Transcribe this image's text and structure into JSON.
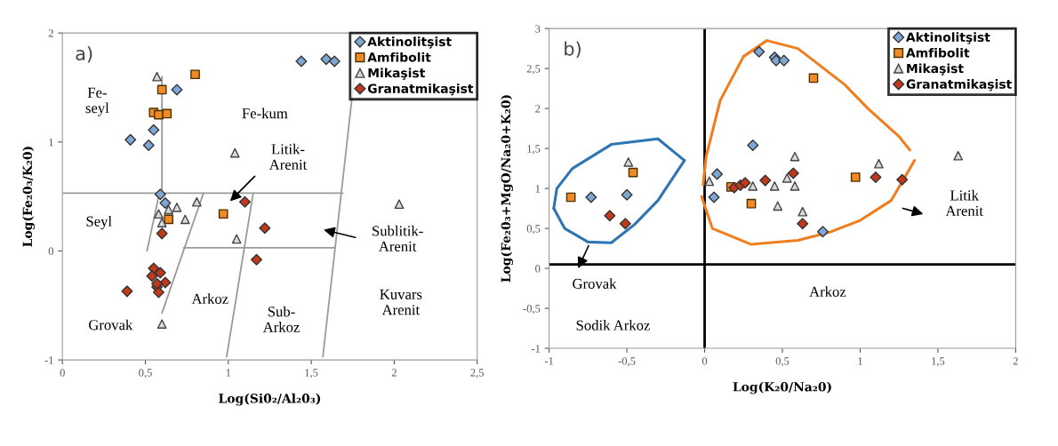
{
  "chart_data": [
    {
      "type": "scatter",
      "title": "a)",
      "xlabel": "Log(Si0₂/Al₂0₃)",
      "ylabel": "Log(Fe₂0₃/K₂0)",
      "xlim": [
        0,
        2.5
      ],
      "ylim": [
        -1,
        2
      ],
      "xticks": [
        0,
        {
          "value": 0.5,
          "label": "0,5"
        },
        1,
        {
          "value": 1.5,
          "label": "1,5"
        },
        2,
        {
          "value": 2.5,
          "label": "2,5"
        }
      ],
      "yticks": [
        -1,
        0,
        1,
        2
      ],
      "grid": false,
      "legend": "top right",
      "series": [
        {
          "name": "Aktinolitşist",
          "color": "#7fa7d6",
          "marker": "diamond",
          "x": [
            1.44,
            1.59,
            1.64,
            0.69,
            0.55,
            0.41,
            0.52,
            0.59,
            0.62
          ],
          "values": [
            1.74,
            1.76,
            1.74,
            1.48,
            1.11,
            1.02,
            0.97,
            0.52,
            0.44
          ]
        },
        {
          "name": "Amfibolit",
          "color": "#f08a24",
          "marker": "square",
          "x": [
            0.8,
            0.6,
            0.55,
            0.58,
            0.63,
            0.64,
            0.97
          ],
          "values": [
            1.62,
            1.48,
            1.27,
            1.25,
            1.26,
            0.29,
            0.34
          ]
        },
        {
          "name": "Mikaşist",
          "color": "#d9d9d9",
          "marker": "triangle",
          "x": [
            0.57,
            1.04,
            0.58,
            0.69,
            0.81,
            0.74,
            0.6,
            0.64,
            1.05,
            0.6,
            2.03
          ],
          "values": [
            1.6,
            0.9,
            0.34,
            0.4,
            0.45,
            0.29,
            0.26,
            0.38,
            0.11,
            -0.67,
            0.43
          ]
        },
        {
          "name": "Granatmikaşist",
          "color": "#c0391b",
          "marker": "diamond",
          "x": [
            1.1,
            1.22,
            0.6,
            1.17,
            0.39,
            0.55,
            0.54,
            0.59,
            0.62,
            0.57,
            0.58,
            0.57
          ],
          "values": [
            0.45,
            0.21,
            0.16,
            -0.08,
            -0.37,
            -0.16,
            -0.23,
            -0.2,
            -0.29,
            -0.33,
            -0.38,
            -0.3
          ]
        },
        {
          "type": "line",
          "color": "#9a9a9a",
          "x": [
            0,
            1.69
          ],
          "values": [
            0.53,
            0.53
          ]
        },
        {
          "type": "line",
          "color": "#9a9a9a",
          "x": [
            0.6,
            0.6
          ],
          "values": [
            0.53,
            1.6
          ]
        },
        {
          "type": "line",
          "color": "#9a9a9a",
          "x": [
            0.73,
            1.64
          ],
          "values": [
            0.03,
            0.03
          ]
        },
        {
          "type": "line",
          "color": "#9a9a9a",
          "x": [
            0.51,
            0.58
          ],
          "values": [
            0.0,
            0.5
          ]
        },
        {
          "type": "line",
          "color": "#9a9a9a",
          "x": [
            0.6,
            0.85
          ],
          "values": [
            -0.57,
            0.53
          ]
        },
        {
          "type": "line",
          "color": "#9a9a9a",
          "x": [
            0.99,
            1.15
          ],
          "values": [
            -0.97,
            0.53
          ]
        },
        {
          "type": "line",
          "color": "#9a9a9a",
          "x": [
            1.57,
            1.76
          ],
          "values": [
            -0.97,
            1.6
          ]
        }
      ],
      "annotations": [
        "Fe-\nseyl",
        "Fe-kum",
        "Litik-\nArenit",
        "Seyl",
        "Grovak",
        "Arkoz",
        "Sub-\nArkoz",
        "Sublitik-\nArenit",
        "Kuvars\nArenit"
      ]
    },
    {
      "type": "scatter",
      "title": "b)",
      "xlabel": "Log(K₂0/Na₂0)",
      "ylabel": "Log(Fe₂0₃+MgO/Na₂0+K₂0)",
      "xlim": [
        -1,
        2
      ],
      "ylim": [
        -1,
        3
      ],
      "xticks": [
        -1,
        {
          "value": -0.5,
          "label": "-0,5"
        },
        0,
        {
          "value": 0.5,
          "label": "0,5"
        },
        1,
        {
          "value": 1.5,
          "label": "1,5"
        },
        2
      ],
      "yticks": [
        -1,
        {
          "value": -0.5,
          "label": "-0,5"
        },
        0,
        {
          "value": 0.5,
          "label": "0,5"
        },
        1,
        {
          "value": 1.5,
          "label": "1,5"
        },
        2,
        {
          "value": 2.5,
          "label": "2,5"
        },
        3
      ],
      "grid": false,
      "legend": "top right",
      "ref_lines": [
        {
          "axis": "x",
          "value": 0,
          "color": "#000000"
        },
        {
          "axis": "y",
          "value": 0.05,
          "color": "#000000"
        }
      ],
      "series": [
        {
          "name": "Aktinolitşist",
          "color": "#7fa7d6",
          "marker": "diamond",
          "x": [
            0.35,
            0.45,
            0.46,
            0.51,
            0.31,
            0.08,
            0.06,
            -0.73,
            -0.5,
            0.76
          ],
          "values": [
            2.71,
            2.64,
            2.6,
            2.6,
            1.54,
            1.18,
            0.89,
            0.89,
            0.92,
            0.46
          ]
        },
        {
          "name": "Amfibolit",
          "color": "#f08a24",
          "marker": "square",
          "x": [
            -0.86,
            -0.46,
            0.3,
            0.17,
            0.7,
            0.97
          ],
          "values": [
            0.89,
            1.2,
            0.81,
            1.02,
            2.38,
            1.14
          ]
        },
        {
          "name": "Mikaşist",
          "color": "#d9d9d9",
          "marker": "triangle",
          "x": [
            -0.49,
            0.03,
            0.31,
            0.45,
            0.47,
            0.53,
            0.58,
            0.58,
            0.63,
            1.12,
            1.63
          ],
          "values": [
            1.33,
            1.09,
            1.03,
            1.03,
            0.78,
            1.13,
            1.4,
            1.03,
            0.71,
            1.31,
            1.41
          ]
        },
        {
          "name": "Granatmikaşist",
          "color": "#c0391b",
          "marker": "diamond",
          "x": [
            -0.61,
            -0.51,
            0.19,
            0.23,
            0.26,
            0.39,
            0.57,
            0.63,
            1.1,
            1.27
          ],
          "values": [
            0.66,
            0.56,
            1.01,
            1.04,
            1.07,
            1.1,
            1.19,
            0.56,
            1.14,
            1.11
          ]
        },
        {
          "type": "line",
          "color": "#2e75b6",
          "x": [
            -0.97,
            -0.95,
            -0.85,
            -0.6,
            -0.3,
            -0.13
          ],
          "values": [
            0.75,
            1.0,
            1.25,
            1.55,
            1.62,
            1.35
          ]
        },
        {
          "type": "line",
          "color": "#2e75b6",
          "x": [
            -0.97,
            -0.9,
            -0.75,
            -0.6,
            -0.45,
            -0.3,
            -0.13
          ],
          "values": [
            0.75,
            0.5,
            0.33,
            0.32,
            0.55,
            0.85,
            1.35
          ]
        },
        {
          "type": "line",
          "color": "#f07d1e",
          "x": [
            -0.01,
            0.01,
            0.1,
            0.25,
            0.4,
            0.6,
            0.9,
            1.05,
            1.25,
            1.32
          ],
          "values": [
            1.05,
            1.4,
            2.1,
            2.65,
            2.85,
            2.75,
            2.3,
            2.0,
            1.65,
            1.48
          ]
        },
        {
          "type": "line",
          "color": "#f07d1e",
          "x": [
            -0.02,
            0.05,
            0.3,
            0.6,
            0.8,
            1.0,
            1.2,
            1.35
          ],
          "values": [
            0.9,
            0.5,
            0.3,
            0.35,
            0.45,
            0.6,
            0.85,
            1.35
          ]
        }
      ],
      "annotations": [
        "Grovak",
        "Sodik Arkoz",
        "Arkoz",
        "Litik\nArenit"
      ]
    }
  ]
}
